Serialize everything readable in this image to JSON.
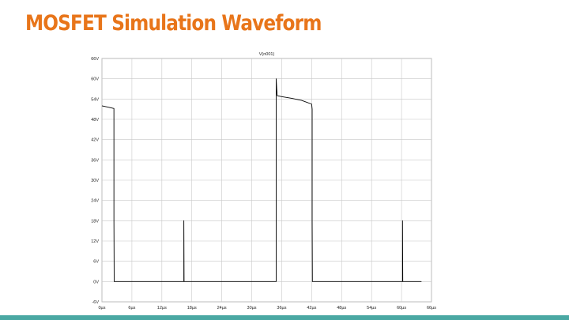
{
  "slide": {
    "title": "MOSFET Simulation Waveform",
    "accent_color": "#e8751a",
    "bar_color": "#4aa8a3"
  },
  "chart_data": {
    "type": "line",
    "title": "",
    "xlabel": "",
    "ylabel": "",
    "grid": true,
    "xlim": [
      0,
      66
    ],
    "ylim": [
      -6,
      66
    ],
    "x_ticks": [
      "0µs",
      "6µs",
      "12µs",
      "18µs",
      "24µs",
      "30µs",
      "36µs",
      "42µs",
      "48µs",
      "54µs",
      "60µs",
      "66µs"
    ],
    "y_ticks": [
      "-6V",
      "0V",
      "6V",
      "12V",
      "18V",
      "24V",
      "30V",
      "36V",
      "42V",
      "48V",
      "54V",
      "60V",
      "66V"
    ],
    "series": [
      {
        "name": "V(n001)",
        "color": "#000000",
        "points": [
          [
            0,
            52
          ],
          [
            1.2,
            51.6
          ],
          [
            2.4,
            51.2
          ],
          [
            2.4,
            18
          ],
          [
            2.45,
            0
          ],
          [
            16.4,
            0
          ],
          [
            16.4,
            18
          ],
          [
            16.45,
            0
          ],
          [
            34.9,
            0
          ],
          [
            34.9,
            60
          ],
          [
            35.0,
            57
          ],
          [
            35.1,
            55
          ],
          [
            36,
            54.7
          ],
          [
            38,
            54.2
          ],
          [
            40,
            53.6
          ],
          [
            42,
            52.5
          ],
          [
            42.1,
            51
          ],
          [
            42.1,
            18
          ],
          [
            42.15,
            0
          ],
          [
            60.2,
            0
          ],
          [
            60.2,
            18
          ],
          [
            60.25,
            0
          ],
          [
            64,
            0
          ]
        ]
      }
    ]
  }
}
